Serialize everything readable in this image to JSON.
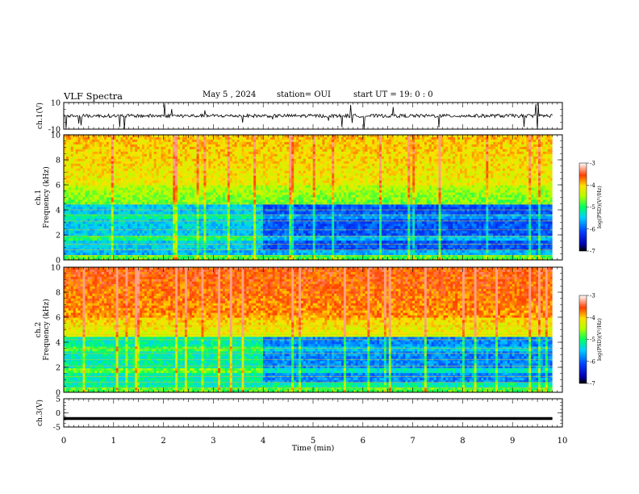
{
  "header": {
    "title": "VLF Spectra",
    "date": "May 5  , 2024",
    "station": "station= OUI",
    "start": "start  UT =   19: 0   : 0"
  },
  "chart_data": [
    {
      "type": "line",
      "panel": "ch1-waveform",
      "ylabel": "ch.1(V)",
      "ylim": [
        -10,
        10
      ],
      "yticks": [
        "10",
        "-10"
      ],
      "xlim": [
        0,
        10
      ],
      "description_values": {
        "baseline_v": 0,
        "data_end_min": 9.8
      }
    },
    {
      "type": "heatmap",
      "panel": "ch1-spectrogram",
      "ylabel": "ch.1\nFrequency  (kHz)",
      "ylim": [
        0,
        10
      ],
      "yticks": [
        "0",
        "2",
        "4",
        "6",
        "8",
        "10"
      ],
      "xlim": [
        0,
        10
      ],
      "colorbar": {
        "label": "log(PSD)(V²/Hz)",
        "range": [
          -7,
          -3
        ],
        "ticks": [
          "-3",
          "-4",
          "-5",
          "-6",
          "-7"
        ]
      }
    },
    {
      "type": "heatmap",
      "panel": "ch2-spectrogram",
      "ylabel": "ch.2\nFrequency  (kHz)",
      "ylim": [
        0,
        10
      ],
      "yticks": [
        "0",
        "2",
        "4",
        "6",
        "8",
        "10"
      ],
      "xlim": [
        0,
        10
      ],
      "colorbar": {
        "label": "log(PSD)(V²/Hz)",
        "range": [
          -7,
          -3
        ],
        "ticks": [
          "-3",
          "-4",
          "-5",
          "-6",
          "-7"
        ]
      }
    },
    {
      "type": "line",
      "panel": "ch3-waveform",
      "ylabel": "ch.3(V)",
      "ylim": [
        -5,
        5
      ],
      "yticks": [
        "5",
        "0",
        "-5"
      ],
      "xlim": [
        0,
        10
      ],
      "xlabel": "Time  (min)",
      "xticks": [
        "0",
        "1",
        "2",
        "3",
        "4",
        "5",
        "6",
        "7",
        "8",
        "9",
        "10"
      ],
      "description_values": {
        "level_v": -2,
        "data_end_min": 9.8
      }
    }
  ]
}
